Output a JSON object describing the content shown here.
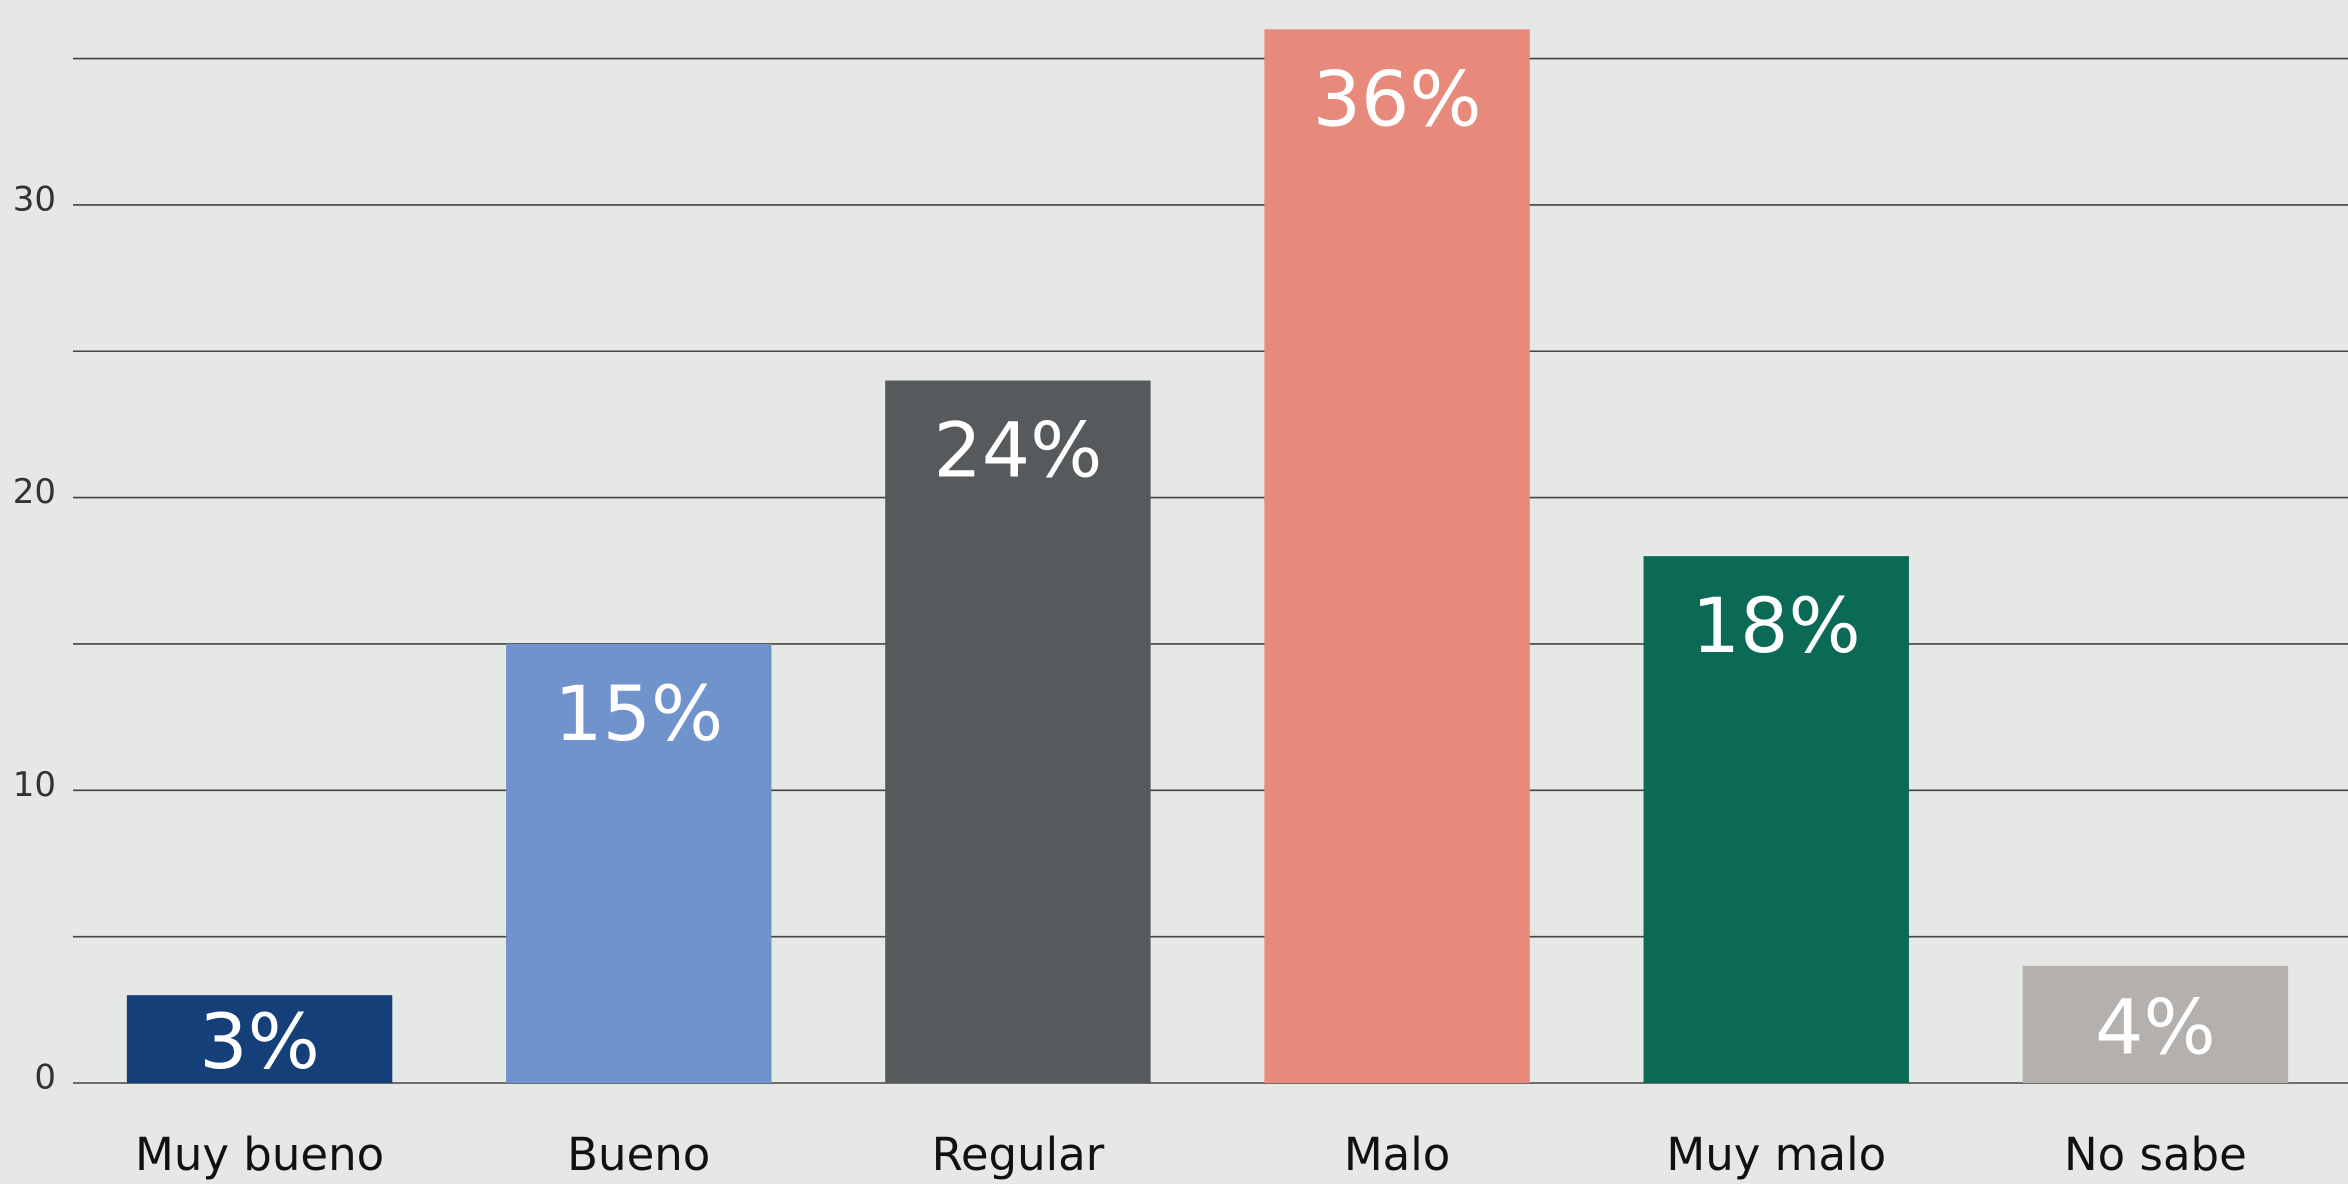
{
  "chart_data": {
    "type": "bar",
    "categories": [
      "Muy bueno",
      "Bueno",
      "Regular",
      "Malo",
      "Muy malo",
      "No sabe"
    ],
    "values": [
      3,
      15,
      24,
      36,
      18,
      4
    ],
    "value_labels": [
      "3%",
      "15%",
      "24%",
      "36%",
      "18%",
      "4%"
    ],
    "colors": [
      "#143f78",
      "#7093cc",
      "#575a5c",
      "#e88a7b",
      "#0a6a55",
      "#b3b0ae"
    ],
    "ylim": [
      0,
      37
    ],
    "yticks": [
      0,
      10,
      20,
      30
    ],
    "minor_yticks": [
      5,
      15,
      25,
      35
    ],
    "grid": true
  }
}
